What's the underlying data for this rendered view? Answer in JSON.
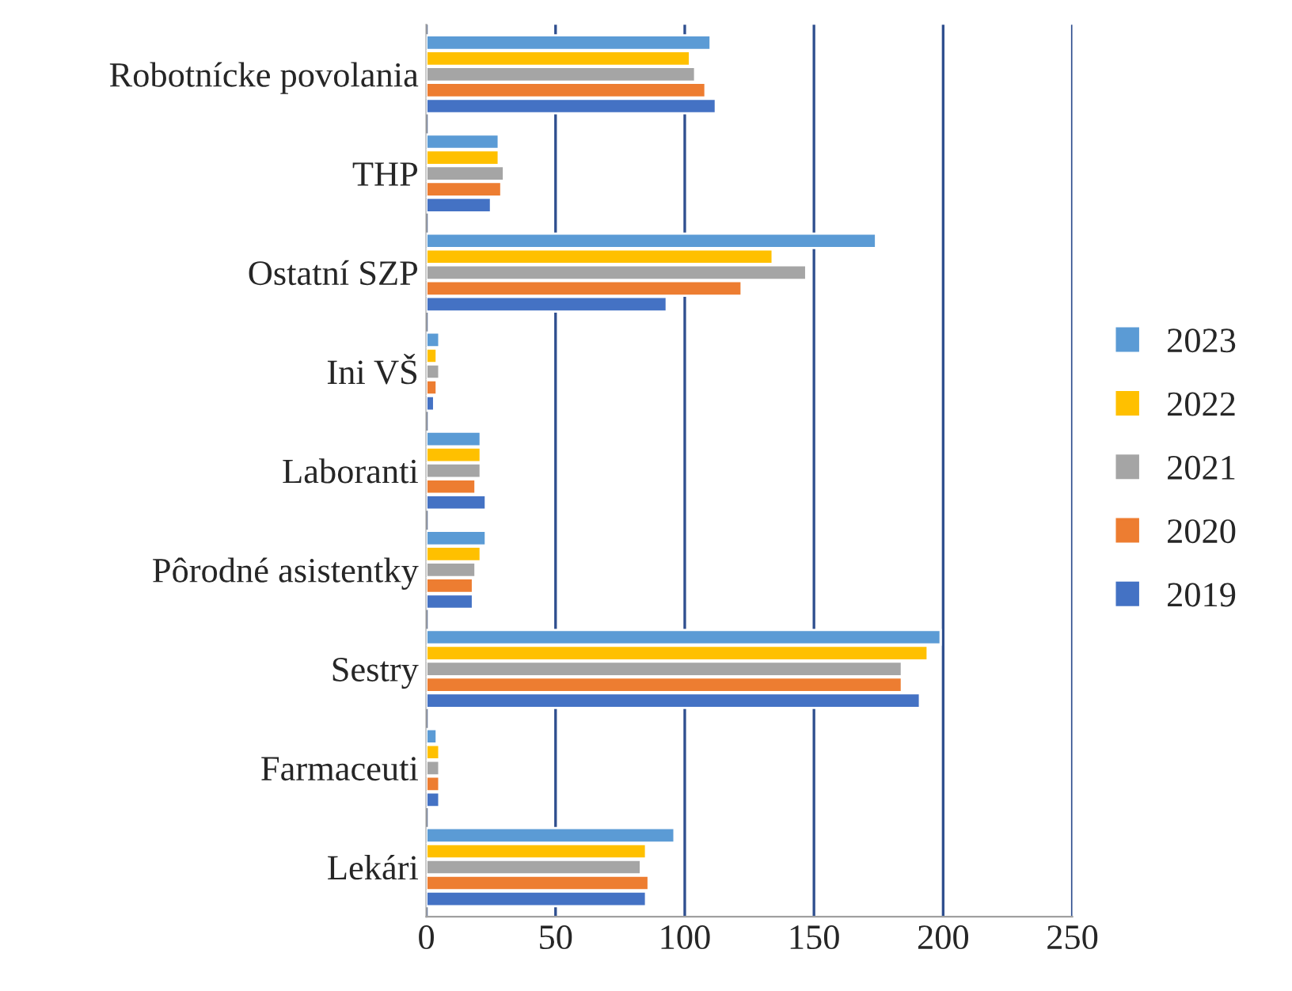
{
  "chart_data": {
    "type": "bar",
    "orientation": "horizontal",
    "categories": [
      "Robotnícke povolania",
      "THP",
      "Ostatní SZP",
      "Ini VŠ",
      "Laboranti",
      "Pôrodné asistentky",
      "Sestry",
      "Farmaceuti",
      "Lekári"
    ],
    "series": [
      {
        "name": "2019",
        "color": "#4472c4",
        "values": [
          112,
          25,
          93,
          3,
          23,
          18,
          191,
          5,
          85
        ]
      },
      {
        "name": "2020",
        "color": "#ed7d31",
        "values": [
          108,
          29,
          122,
          4,
          19,
          18,
          184,
          5,
          86
        ]
      },
      {
        "name": "2021",
        "color": "#a5a5a5",
        "values": [
          104,
          30,
          147,
          5,
          21,
          19,
          184,
          5,
          83
        ]
      },
      {
        "name": "2022",
        "color": "#ffc000",
        "values": [
          102,
          28,
          134,
          4,
          21,
          21,
          194,
          5,
          85
        ]
      },
      {
        "name": "2023",
        "color": "#5b9bd5",
        "values": [
          110,
          28,
          174,
          5,
          21,
          23,
          199,
          4,
          96
        ]
      }
    ],
    "xlim": [
      0,
      250
    ],
    "xticks": [
      0,
      50,
      100,
      150,
      200,
      250
    ],
    "grid": "x",
    "legend": "right"
  }
}
